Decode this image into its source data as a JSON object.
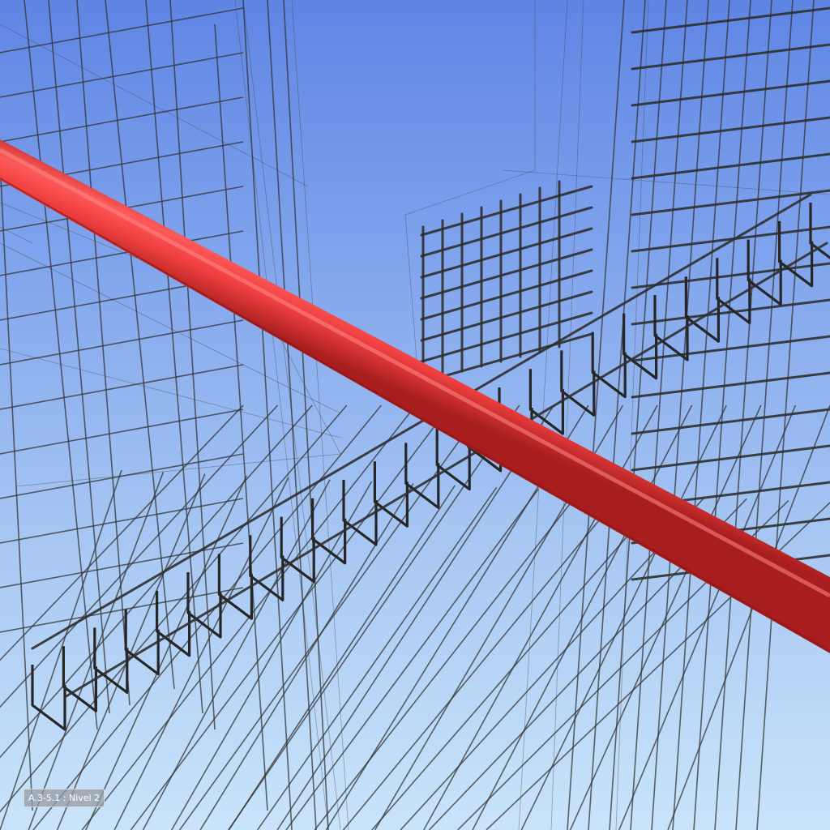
{
  "viewport": {
    "level_label": "A.3-5.1 : Nivel 2"
  },
  "colors": {
    "sky_top": "#5f85e4",
    "sky_bottom": "#c9e4fa",
    "rebar": "#2f2f2f",
    "pipe": "#ef3e3e"
  },
  "icons": {
    "pipe": "red-pipe-element",
    "rebar": "rebar-wireframe"
  }
}
